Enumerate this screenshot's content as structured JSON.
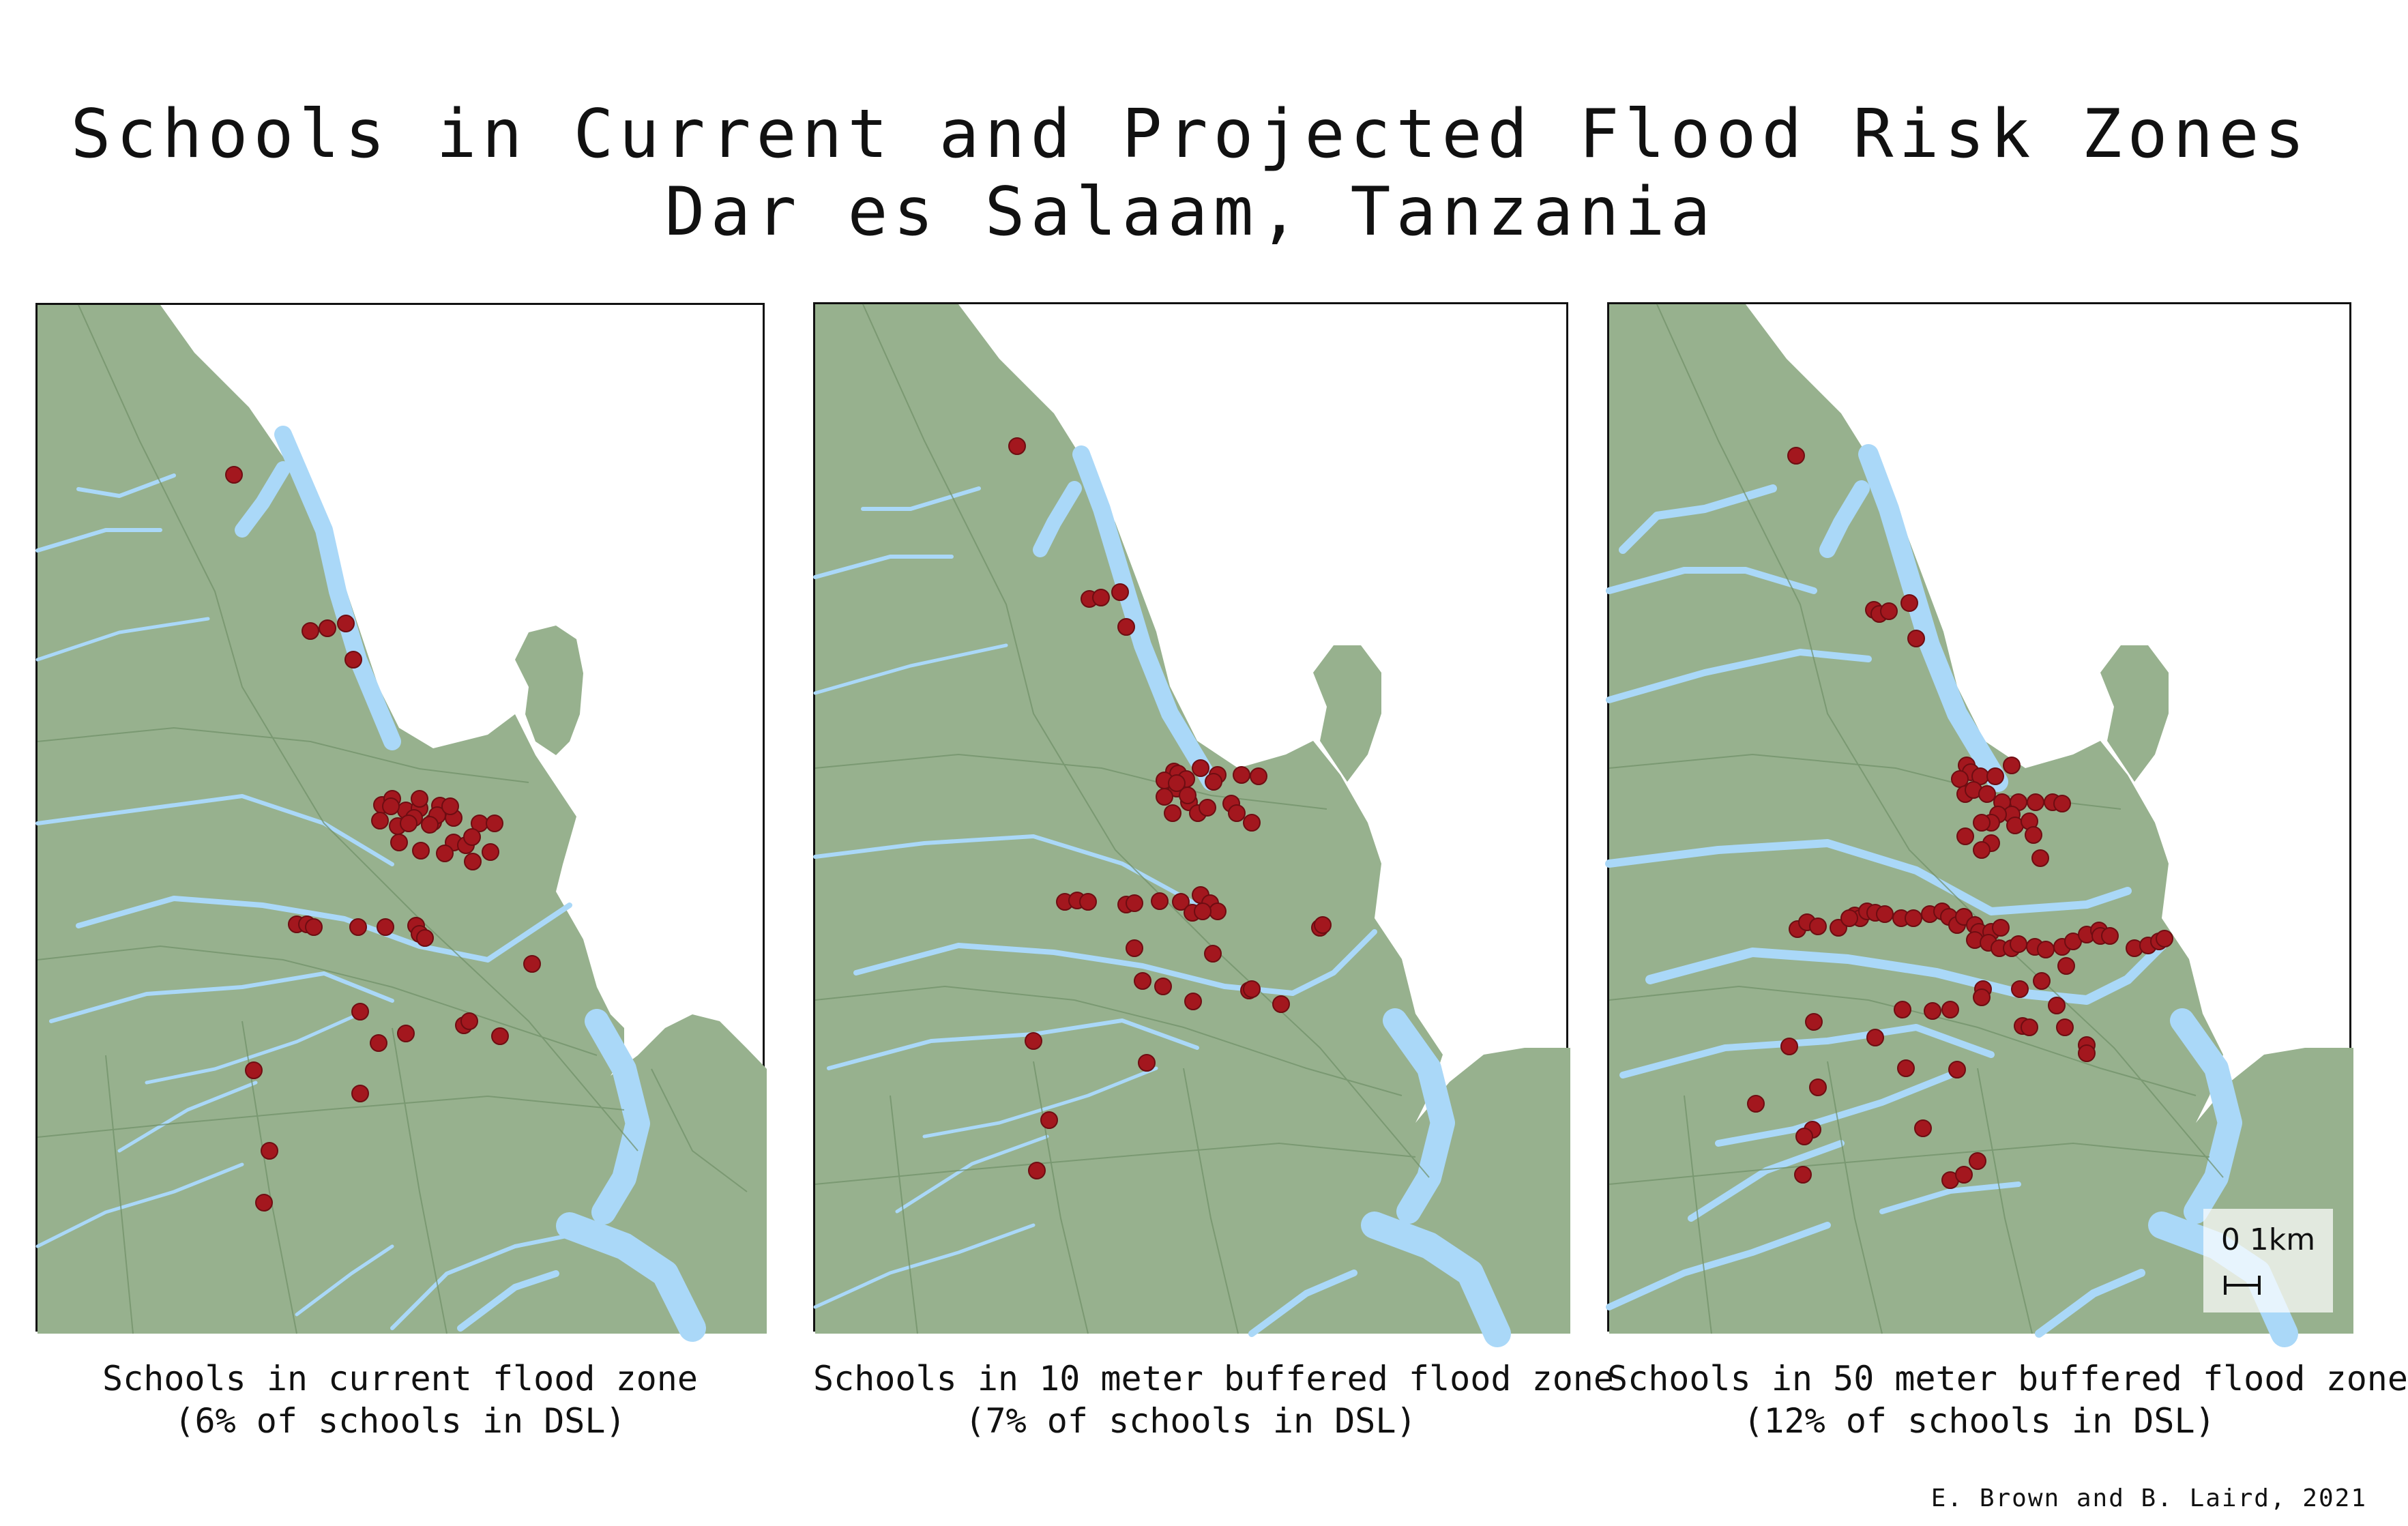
{
  "title": {
    "line1": "Schools in Current and Projected Flood Risk Zones",
    "line2": "Dar es Salaam, Tanzania"
  },
  "colors": {
    "land": "#97b18e",
    "water": "#aad8f8",
    "boundary": "#6f8f67",
    "school": "#a3171e",
    "frame": "#111111"
  },
  "panels": [
    {
      "caption_line1": "Schools in current flood zone",
      "caption_line2": "(6% of schools in DSL)",
      "school_count_shown": 50
    },
    {
      "caption_line1": "Schools in 10 meter buffered flood zone",
      "caption_line2": "(7% of schools in DSL)",
      "school_count_shown": 50
    },
    {
      "caption_line1": "Schools in 50 meter buffered flood zone",
      "caption_line2": "(12% of schools in DSL)",
      "school_count_shown": 96
    }
  ],
  "scale_bar": {
    "label": "0 1km"
  },
  "credit": "E. Brown and B. Laird, 2021"
}
